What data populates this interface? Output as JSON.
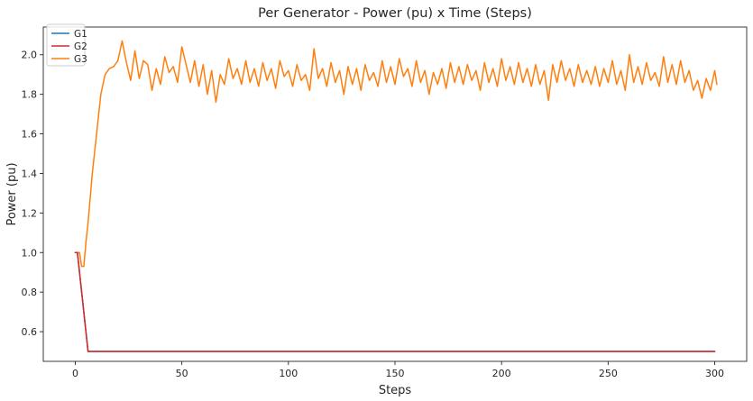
{
  "chart_data": {
    "type": "line",
    "title": "Per Generator - Power (pu) x Time (Steps)",
    "xlabel": "Steps",
    "ylabel": "Power (pu)",
    "xlim": [
      -15,
      315
    ],
    "ylim": [
      0.45,
      2.14
    ],
    "xticks": [
      0,
      50,
      100,
      150,
      200,
      250,
      300
    ],
    "yticks": [
      0.6,
      0.8,
      1.0,
      1.2,
      1.4,
      1.6,
      1.8,
      2.0
    ],
    "xtick_labels": [
      "0",
      "50",
      "100",
      "150",
      "200",
      "250",
      "300"
    ],
    "ytick_labels": [
      "0.6",
      "0.8",
      "1.0",
      "1.2",
      "1.4",
      "1.6",
      "1.8",
      "2.0"
    ],
    "grid": false,
    "legend_position": "top-left",
    "series": [
      {
        "name": "G1",
        "color": "#1f77b4",
        "x": [
          0,
          1,
          6,
          300
        ],
        "values": [
          1.0,
          1.0,
          0.5,
          0.5
        ]
      },
      {
        "name": "G2",
        "color": "#d62728",
        "x": [
          0,
          1,
          6,
          300
        ],
        "values": [
          1.0,
          1.0,
          0.5,
          0.5
        ]
      },
      {
        "name": "G3",
        "color": "#ff7f0e",
        "x": [
          0,
          2,
          3,
          4,
          5,
          6,
          8,
          10,
          12,
          14,
          16,
          18,
          20,
          22,
          24,
          26,
          28,
          30,
          32,
          34,
          36,
          38,
          40,
          42,
          44,
          46,
          48,
          50,
          52,
          54,
          56,
          58,
          60,
          62,
          64,
          66,
          68,
          70,
          72,
          74,
          76,
          78,
          80,
          82,
          84,
          86,
          88,
          90,
          92,
          94,
          96,
          98,
          100,
          102,
          104,
          106,
          108,
          110,
          112,
          114,
          116,
          118,
          120,
          122,
          124,
          126,
          128,
          130,
          132,
          134,
          136,
          138,
          140,
          142,
          144,
          146,
          148,
          150,
          152,
          154,
          156,
          158,
          160,
          162,
          164,
          166,
          168,
          170,
          172,
          174,
          176,
          178,
          180,
          182,
          184,
          186,
          188,
          190,
          192,
          194,
          196,
          198,
          200,
          202,
          204,
          206,
          208,
          210,
          212,
          214,
          216,
          218,
          220,
          222,
          224,
          226,
          228,
          230,
          232,
          234,
          236,
          238,
          240,
          242,
          244,
          246,
          248,
          250,
          252,
          254,
          256,
          258,
          260,
          262,
          264,
          266,
          268,
          270,
          272,
          274,
          276,
          278,
          280,
          282,
          284,
          286,
          288,
          290,
          292,
          294,
          296,
          298,
          300,
          301
        ],
        "values": [
          1.0,
          1.0,
          0.93,
          0.93,
          1.05,
          1.15,
          1.4,
          1.6,
          1.8,
          1.9,
          1.93,
          1.94,
          1.97,
          2.07,
          1.96,
          1.87,
          2.02,
          1.88,
          1.97,
          1.95,
          1.82,
          1.93,
          1.85,
          1.99,
          1.91,
          1.94,
          1.86,
          2.04,
          1.95,
          1.86,
          1.97,
          1.84,
          1.95,
          1.8,
          1.92,
          1.76,
          1.9,
          1.85,
          1.98,
          1.88,
          1.93,
          1.85,
          1.97,
          1.86,
          1.93,
          1.84,
          1.96,
          1.87,
          1.93,
          1.83,
          1.97,
          1.89,
          1.92,
          1.84,
          1.95,
          1.87,
          1.9,
          1.82,
          2.03,
          1.88,
          1.93,
          1.84,
          1.96,
          1.86,
          1.92,
          1.8,
          1.94,
          1.85,
          1.93,
          1.82,
          1.95,
          1.87,
          1.91,
          1.84,
          1.97,
          1.86,
          1.94,
          1.85,
          1.98,
          1.89,
          1.93,
          1.84,
          1.97,
          1.86,
          1.92,
          1.8,
          1.91,
          1.85,
          1.93,
          1.83,
          1.96,
          1.86,
          1.94,
          1.85,
          1.95,
          1.87,
          1.92,
          1.82,
          1.96,
          1.86,
          1.93,
          1.84,
          1.98,
          1.87,
          1.94,
          1.85,
          1.96,
          1.86,
          1.93,
          1.84,
          1.95,
          1.85,
          1.92,
          1.77,
          1.95,
          1.86,
          1.97,
          1.87,
          1.93,
          1.84,
          1.95,
          1.86,
          1.92,
          1.85,
          1.94,
          1.84,
          1.93,
          1.86,
          1.97,
          1.85,
          1.92,
          1.82,
          2.0,
          1.86,
          1.94,
          1.85,
          1.96,
          1.87,
          1.91,
          1.84,
          1.99,
          1.86,
          1.95,
          1.85,
          1.97,
          1.86,
          1.92,
          1.82,
          1.87,
          1.78,
          1.88,
          1.82,
          1.92,
          1.85
        ]
      }
    ]
  }
}
